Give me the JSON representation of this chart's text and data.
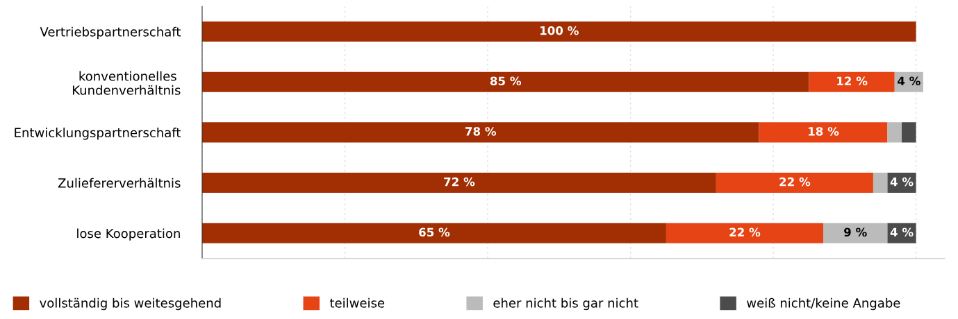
{
  "chart_data": {
    "type": "bar",
    "orientation": "horizontal",
    "stacked": true,
    "categories": [
      "Vertriebspartnerschaft",
      "konventionelles \nKundenverhältnis",
      "Entwicklungspartnerschaft",
      "Zuliefererverhältnis",
      "lose Kooperation"
    ],
    "series": [
      {
        "name": "vollständig bis weitesgehend",
        "color": "#a12f03",
        "values": [
          100,
          85,
          78,
          72,
          65
        ],
        "value_labels": [
          "100 %",
          "85 %",
          "78 %",
          "72 %",
          "65 %"
        ]
      },
      {
        "name": "teilweise",
        "color": "#e64414",
        "values": [
          null,
          12,
          18,
          22,
          22
        ],
        "value_labels": [
          null,
          "12 %",
          "18 %",
          "22 %",
          "22 %"
        ]
      },
      {
        "name": "eher nicht bis gar nicht",
        "color": "#bbbbbb",
        "values": [
          null,
          4,
          2,
          2,
          9
        ],
        "value_labels": [
          null,
          "4 %",
          null,
          null,
          "9 %"
        ]
      },
      {
        "name": "weiß nicht/keine Angabe",
        "color": "#4b4b4b",
        "values": [
          null,
          null,
          2,
          4,
          4
        ],
        "value_labels": [
          null,
          null,
          null,
          "4 %",
          "4 %"
        ]
      }
    ],
    "xlim": [
      0,
      104
    ],
    "xticks": [
      {
        "value": 0,
        "label": null
      },
      {
        "value": 20,
        "label": null
      },
      {
        "value": 40,
        "label": null
      },
      {
        "value": 60,
        "label": null
      },
      {
        "value": 80,
        "label": null
      },
      {
        "value": 100,
        "label": null
      }
    ],
    "grid": "x",
    "legend": "bottom"
  }
}
